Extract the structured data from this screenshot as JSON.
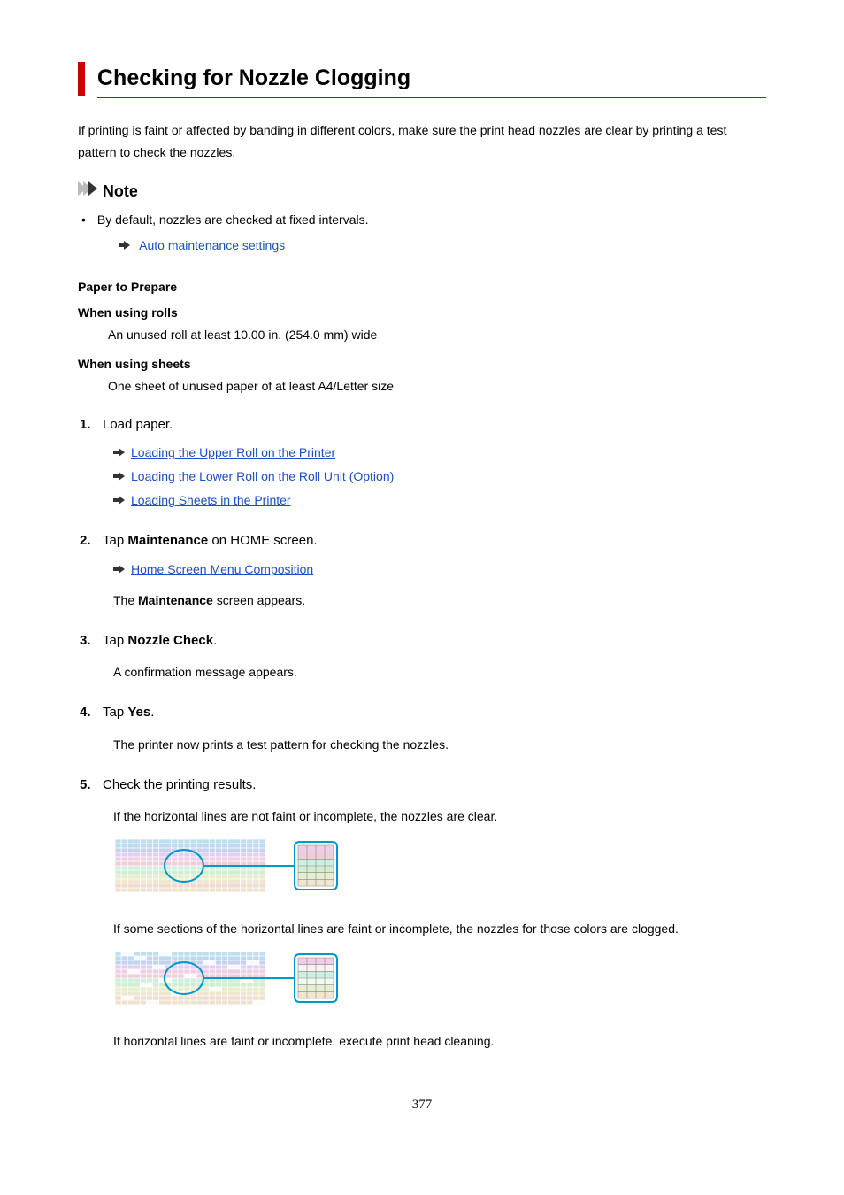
{
  "title": "Checking for Nozzle Clogging",
  "intro": "If printing is faint or affected by banding in different colors, make sure the print head nozzles are clear by printing a test pattern to check the nozzles.",
  "note": {
    "label": "Note",
    "items": [
      {
        "text": "By default, nozzles are checked at fixed intervals.",
        "link": "Auto maintenance settings"
      }
    ]
  },
  "prepare": {
    "heading": "Paper to Prepare",
    "rolls": {
      "label": "When using rolls",
      "text": "An unused roll at least 10.00 in. (254.0 mm) wide"
    },
    "sheets": {
      "label": "When using sheets",
      "text": "One sheet of unused paper of at least A4/Letter size"
    }
  },
  "steps": [
    {
      "head": "Load paper.",
      "links": [
        "Loading the Upper Roll on the Printer",
        "Loading the Lower Roll on the Roll Unit (Option)",
        "Loading Sheets in the Printer"
      ]
    },
    {
      "head_pre": "Tap ",
      "head_bold": "Maintenance",
      "head_post": " on HOME screen.",
      "links": [
        "Home Screen Menu Composition"
      ],
      "after_pre": "The ",
      "after_bold": "Maintenance",
      "after_post": " screen appears."
    },
    {
      "head_pre": "Tap ",
      "head_bold": "Nozzle Check",
      "head_post": ".",
      "after": "A confirmation message appears."
    },
    {
      "head_pre": "Tap ",
      "head_bold": "Yes",
      "head_post": ".",
      "after": "The printer now prints a test pattern for checking the nozzles."
    },
    {
      "head": "Check the printing results.",
      "para1": "If the horizontal lines are not faint or incomplete, the nozzles are clear.",
      "para2": "If some sections of the horizontal lines are faint or incomplete, the nozzles for those colors are clogged.",
      "para3": "If horizontal lines are faint or incomplete, execute print head cleaning."
    }
  ],
  "figure": {
    "grid_color": "#5588dd",
    "grid_opacity": 0.5,
    "callout_stroke": "#0099cc",
    "callout_width": 2,
    "stripe_colors": [
      "#7fbfe0",
      "#7fb6e0",
      "#88a8e0",
      "#c8a0e0",
      "#e0a0d0",
      "#e0a0b0",
      "#a0e0c8",
      "#a0e0a0",
      "#d0e0a0",
      "#e0d0a0",
      "#e0b8a0",
      "#e0c8a0"
    ],
    "fig2_gap_opacity": 0.15
  },
  "page_number": "377"
}
